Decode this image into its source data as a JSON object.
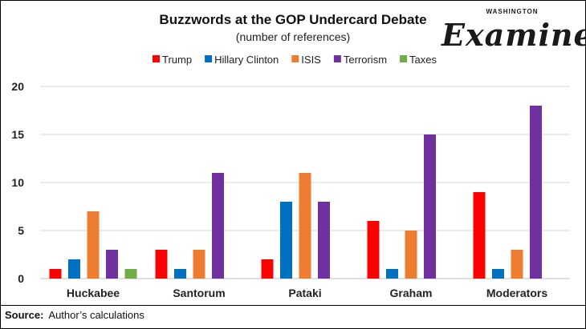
{
  "chart_data": {
    "type": "bar",
    "title": "Buzzwords at the GOP Undercard Debate",
    "subtitle": "(number of references)",
    "categories": [
      "Huckabee",
      "Santorum",
      "Pataki",
      "Graham",
      "Moderators"
    ],
    "series": [
      {
        "name": "Trump",
        "color": "#ff0000",
        "values": [
          1,
          3,
          2,
          6,
          9
        ]
      },
      {
        "name": "Hillary Clinton",
        "color": "#0070c0",
        "values": [
          2,
          1,
          8,
          1,
          1
        ]
      },
      {
        "name": "ISIS",
        "color": "#ed7d31",
        "values": [
          7,
          3,
          11,
          5,
          3
        ]
      },
      {
        "name": "Terrorism",
        "color": "#7030a0",
        "values": [
          3,
          11,
          8,
          15,
          18
        ]
      },
      {
        "name": "Taxes",
        "color": "#70ad47",
        "values": [
          1,
          0,
          0,
          0,
          0
        ]
      }
    ],
    "ylim": [
      0,
      20
    ],
    "yticks": [
      0,
      5,
      10,
      15,
      20
    ],
    "grid": true,
    "legend": "top"
  },
  "logo": {
    "top_text": "WASHINGTON",
    "word": "Examiner"
  },
  "source": {
    "label": "Source:",
    "text": "Author’s calculations"
  }
}
